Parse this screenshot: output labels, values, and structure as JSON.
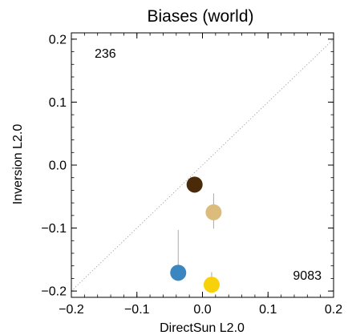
{
  "chart_data": {
    "type": "scatter",
    "title": "Biases (world)",
    "xlabel": "DirectSun L2.0",
    "ylabel": "Inversion L2.0",
    "xlim": [
      -0.2,
      0.2
    ],
    "ylim": [
      -0.21,
      0.21
    ],
    "x_ticks": [
      -0.2,
      -0.1,
      0.0,
      0.1,
      0.2
    ],
    "x_tick_labels": [
      "−0.2",
      "−0.1",
      "0.0",
      "0.1",
      "0.2"
    ],
    "y_ticks": [
      -0.2,
      -0.1,
      0.0,
      0.1,
      0.2
    ],
    "y_tick_labels": [
      "−0.2",
      "−0.1",
      "0.0",
      "0.1",
      "0.2"
    ],
    "grid": false,
    "reference_line": "1:1 dotted diagonal",
    "annotations": [
      {
        "text": "236",
        "position": "top-left"
      },
      {
        "text": "9083",
        "position": "bottom-right"
      }
    ],
    "points": [
      {
        "x": -0.012,
        "y": -0.031,
        "err_low": -0.044,
        "err_high": -0.027,
        "color": "#4a2a08"
      },
      {
        "x": 0.017,
        "y": -0.075,
        "err_low": -0.101,
        "err_high": -0.045,
        "color": "#dcbc7c"
      },
      {
        "x": -0.037,
        "y": -0.171,
        "err_low": -0.184,
        "err_high": -0.103,
        "color": "#3a86c0"
      },
      {
        "x": 0.014,
        "y": -0.19,
        "err_low": -0.197,
        "err_high": -0.17,
        "color": "#f7d20a"
      }
    ]
  }
}
